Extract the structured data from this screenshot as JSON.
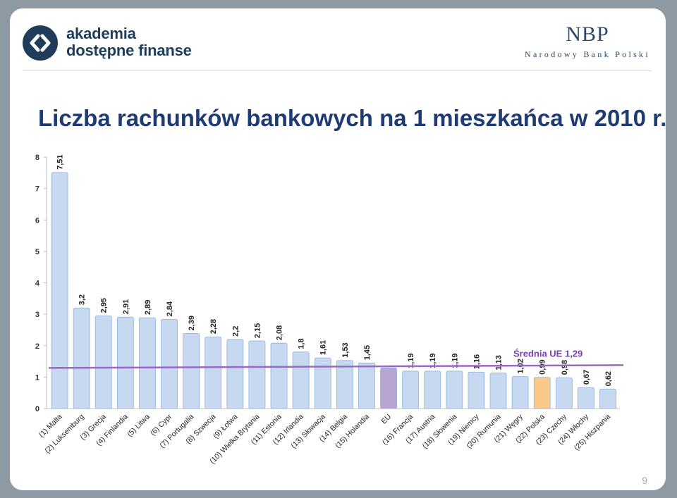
{
  "header": {
    "logo_line1": "akademia",
    "logo_line2": "dostępne finanse",
    "nbp_title": "NBP",
    "nbp_subtitle": "Narodowy Bank Polski"
  },
  "slide": {
    "title": "Liczba rachunków bankowych na 1 mieszkańca w 2010 r.",
    "page_number": "9"
  },
  "colors": {
    "bar": "#c6d9f1",
    "bar_edge": "#8eb1dd",
    "eu_bar": "#b9a3d2",
    "poland_bar": "#fcc98d",
    "avg_line": "#9c67c7",
    "avg_label": "#7a3fb0",
    "title": "#1f3b73"
  },
  "chart_data": {
    "type": "bar",
    "ylim": [
      0,
      8
    ],
    "yticks": [
      "0",
      "1",
      "2",
      "3",
      "4",
      "5",
      "6",
      "7",
      "8"
    ],
    "grid": false,
    "categories": [
      "(1) Malta",
      "(2) Luksemburg",
      "(3) Grecja",
      "(4) Finlandia",
      "(5) Litwa",
      "(6) Cypr",
      "(7) Portugalia",
      "(8) Szwecja",
      "(9) Łotwa",
      "(10) Wielka Brytania",
      "(11) Estonia",
      "(12) Irlandia",
      "(13) Słowacja",
      "(14) Belgia",
      "(15) Holandia",
      "EU",
      "(16) Francja",
      "(17) Austria",
      "(18) Słowenia",
      "(19) Niemcy",
      "(20) Rumunia",
      "(21) Węgry",
      "(22) Polska",
      "(23) Czechy",
      "(24) Włochy",
      "(25) Hiszpania"
    ],
    "values": [
      7.51,
      3.2,
      2.95,
      2.91,
      2.89,
      2.84,
      2.39,
      2.28,
      2.2,
      2.15,
      2.08,
      1.8,
      1.61,
      1.53,
      1.45,
      1.29,
      1.19,
      1.19,
      1.19,
      1.16,
      1.13,
      1.02,
      0.99,
      0.98,
      0.67,
      0.62
    ],
    "value_labels": [
      "7,51",
      "3,2",
      "2,95",
      "2,91",
      "2,89",
      "2,84",
      "2,39",
      "2,28",
      "2,2",
      "2,15",
      "2,08",
      "1,8",
      "1,61",
      "1,53",
      "1,45",
      "",
      "1,19",
      "1,19",
      "1,19",
      "1,16",
      "1,13",
      "1,02",
      "0,99",
      "0,98",
      "0,67",
      "0,62"
    ],
    "highlight": {
      "EU": "eu_bar",
      "(22) Polska": "poland_bar"
    },
    "average_line": {
      "value": 1.29,
      "label": "Średnia UE 1,29"
    }
  }
}
